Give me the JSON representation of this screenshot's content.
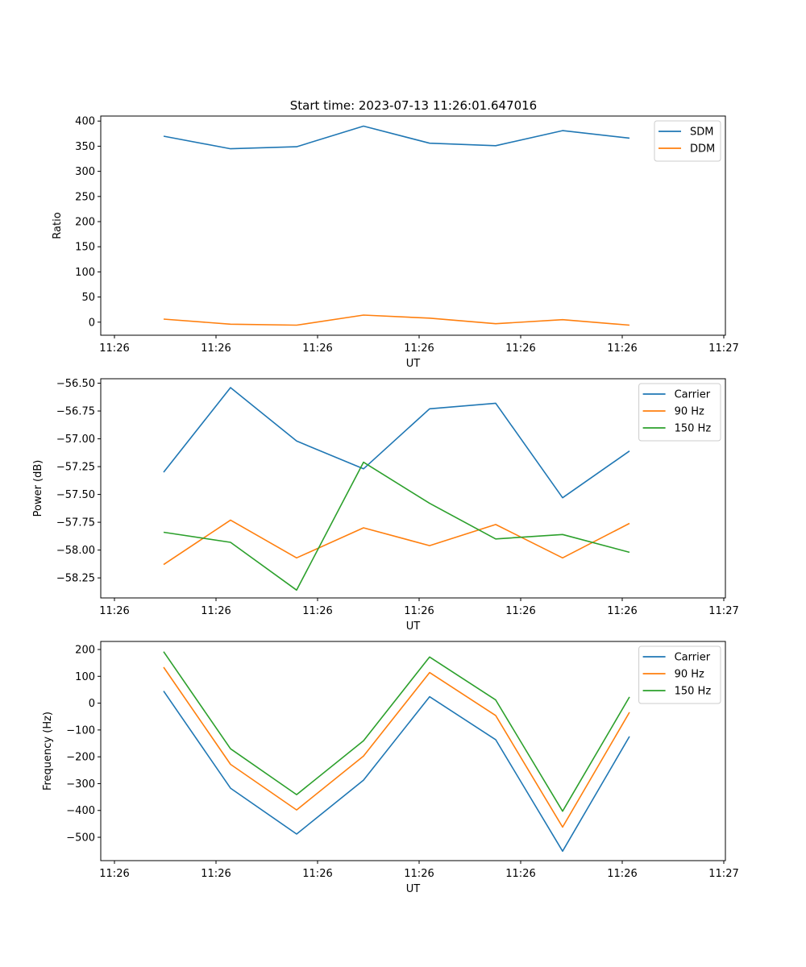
{
  "figure": {
    "title": "Start time: 2023-07-13 11:26:01.647016"
  },
  "chart_data": [
    {
      "type": "line",
      "title": "Start time: 2023-07-13 11:26:01.647016",
      "xlabel": "UT",
      "ylabel": "Ratio",
      "x_tick_labels": [
        "11:26",
        "11:26",
        "11:26",
        "11:26",
        "11:26",
        "11:26",
        "11:27"
      ],
      "y_ticks": [
        0,
        50,
        100,
        150,
        200,
        250,
        300,
        350,
        400
      ],
      "y_tick_labels": [
        "0",
        "50",
        "100",
        "150",
        "200",
        "250",
        "300",
        "350",
        "400"
      ],
      "ylim": [
        -26,
        410
      ],
      "grid": false,
      "legend_position": "upper-right",
      "series": [
        {
          "name": "SDM",
          "color": "#1f77b4",
          "values": [
            370,
            345,
            349,
            390,
            356,
            351,
            381,
            366
          ]
        },
        {
          "name": "DDM",
          "color": "#ff7f0e",
          "values": [
            6,
            -4,
            -6,
            14,
            8,
            -3,
            5,
            -6
          ]
        }
      ]
    },
    {
      "type": "line",
      "title": "",
      "xlabel": "UT",
      "ylabel": "Power (dB)",
      "x_tick_labels": [
        "11:26",
        "11:26",
        "11:26",
        "11:26",
        "11:26",
        "11:26",
        "11:27"
      ],
      "y_ticks": [
        -56.5,
        -56.75,
        -57.0,
        -57.25,
        -57.5,
        -57.75,
        -58.0,
        -58.25
      ],
      "y_tick_labels": [
        "−56.50",
        "−56.75",
        "−57.00",
        "−57.25",
        "−57.50",
        "−57.75",
        "−58.00",
        "−58.25"
      ],
      "ylim": [
        -58.43,
        -56.46
      ],
      "grid": false,
      "legend_position": "upper-right",
      "series": [
        {
          "name": "Carrier",
          "color": "#1f77b4",
          "values": [
            -57.3,
            -56.54,
            -57.02,
            -57.27,
            -56.73,
            -56.68,
            -57.53,
            -57.11
          ]
        },
        {
          "name": "90 Hz",
          "color": "#ff7f0e",
          "values": [
            -58.13,
            -57.73,
            -58.07,
            -57.8,
            -57.96,
            -57.77,
            -58.07,
            -57.76
          ]
        },
        {
          "name": "150 Hz",
          "color": "#2ca02c",
          "values": [
            -57.84,
            -57.93,
            -58.36,
            -57.21,
            -57.58,
            -57.9,
            -57.86,
            -58.02
          ]
        }
      ]
    },
    {
      "type": "line",
      "title": "",
      "xlabel": "UT",
      "ylabel": "Frequency (Hz)",
      "x_tick_labels": [
        "11:26",
        "11:26",
        "11:26",
        "11:26",
        "11:26",
        "11:26",
        "11:27"
      ],
      "y_ticks": [
        200,
        100,
        0,
        -100,
        -200,
        -300,
        -400,
        -500
      ],
      "y_tick_labels": [
        "200",
        "100",
        "0",
        "−100",
        "−200",
        "−300",
        "−400",
        "−500"
      ],
      "ylim": [
        -587,
        230
      ],
      "grid": false,
      "legend_position": "upper-right",
      "series": [
        {
          "name": "Carrier",
          "color": "#1f77b4",
          "values": [
            45,
            -317,
            -488,
            -287,
            24,
            -136,
            -552,
            -124
          ]
        },
        {
          "name": "90 Hz",
          "color": "#ff7f0e",
          "values": [
            134,
            -228,
            -398,
            -197,
            114,
            -46,
            -462,
            -34
          ]
        },
        {
          "name": "150 Hz",
          "color": "#2ca02c",
          "values": [
            192,
            -170,
            -341,
            -140,
            172,
            12,
            -403,
            23
          ]
        }
      ]
    }
  ]
}
